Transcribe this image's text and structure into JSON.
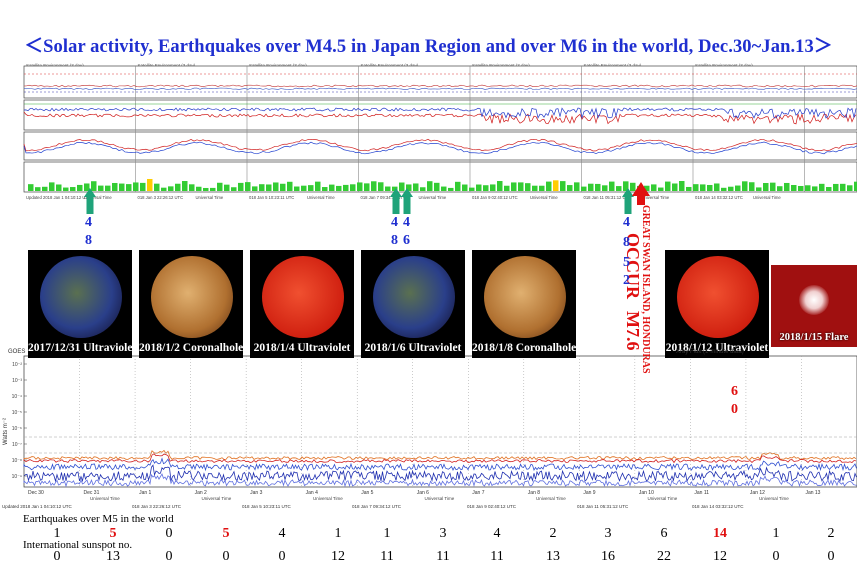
{
  "title": "＜Solar activity, Earthquakes over M4.5 in Japan Region and over M6 in the world, Dec.30~Jan.13＞",
  "images": [
    {
      "caption": "2017/12/31 Ultraviolet",
      "color": "#2a3f8a"
    },
    {
      "caption": "2018/1/2 Coronalhole",
      "color": "#c08040"
    },
    {
      "caption": "2018/1/4 Ultraviolet",
      "color": "#e03010"
    },
    {
      "caption": "2018/1/6 Ultraviolet",
      "color": "#2a3f8a"
    },
    {
      "caption": "2018/1/8 Coronalhole",
      "color": "#c08040"
    },
    {
      "caption": "2018/1/12 Ultraviolet",
      "color": "#e03010"
    },
    {
      "caption": "2018/1/15 Flare",
      "color": "#b01010"
    }
  ],
  "callouts": {
    "vertical_place": "GREAT SWAN ISLAND, HONDURAS",
    "vertical_occur": "OCCUR",
    "vertical_mag": "M7.6",
    "m60_digits": [
      "6",
      "0"
    ],
    "jan6_digits": [
      "4",
      "4",
      "8",
      "6"
    ],
    "jan1_digits": [
      "4",
      "8"
    ],
    "jan10_digits": [
      "4",
      "8",
      "5",
      "2"
    ]
  },
  "panel_labels": {
    "upper_header": "Satellite Environment (3 day)",
    "lower_header_right": "Xray Flux (1-minute data)",
    "goes": "GOES",
    "y_unit": "Watts m⁻²",
    "universal_time": "Universal Time",
    "updated": [
      "Updated 2018 Jan  1 04:10:12 UTC",
      "018 Jan  3 22:26:12 UTC",
      "018 Jan  5 10:23:11 UTC",
      "018 Jan  7 09:34:12 UTC",
      "018 Jan  9 02:40:12 UTC",
      "018 Jan 11 05:31:12 UTC",
      "018 Jan 14 03:32:12 UTC"
    ],
    "date_ticks": [
      "Dec 30",
      "Dec 31",
      "Jan 1",
      "Jan 2",
      "Jan 3",
      "Jan 4",
      "Jan 5",
      "Jan 6",
      "Jan 7",
      "Jan 8",
      "Jan 9",
      "Jan 10",
      "Jan 11",
      "Jan 12",
      "Jan 13",
      "Jan 1"
    ],
    "y_ticks": [
      "10⁻²",
      "10⁻³",
      "10⁻⁴",
      "10⁻⁵",
      "10⁻⁶",
      "10⁻⁷",
      "10⁻⁸",
      "10⁻⁹"
    ]
  },
  "chart_data": {
    "type": "table",
    "row_labels": [
      "Earthquakes over M5 in the world",
      "International sunspot no."
    ],
    "earthquakes_m5": [
      1,
      5,
      0,
      5,
      4,
      1,
      1,
      3,
      4,
      2,
      3,
      6,
      14,
      1,
      2
    ],
    "earthquakes_highlight": [
      false,
      true,
      false,
      true,
      false,
      false,
      false,
      false,
      false,
      false,
      false,
      false,
      true,
      false,
      false
    ],
    "sunspot_no": [
      0,
      13,
      0,
      0,
      0,
      12,
      11,
      11,
      11,
      13,
      16,
      22,
      12,
      0,
      0
    ],
    "kp_bar_color_quiet": "#33cc33",
    "kp_bar_color_active": "#ffcc00",
    "arrow_green": "#1fa37a",
    "arrow_red": "#e01010"
  }
}
